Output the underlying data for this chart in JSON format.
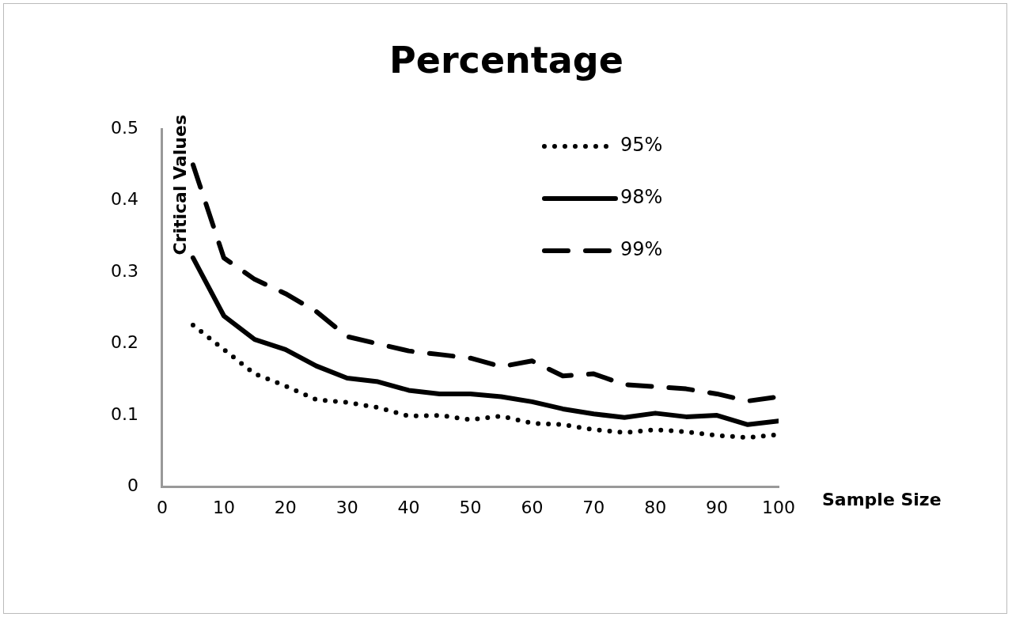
{
  "chart_data": {
    "type": "line",
    "title": "Percentage",
    "xlabel": "Sample Size",
    "ylabel": "Critical Values",
    "x": [
      5,
      10,
      15,
      20,
      25,
      30,
      35,
      40,
      45,
      50,
      55,
      60,
      65,
      70,
      75,
      80,
      85,
      90,
      95,
      100
    ],
    "series": [
      {
        "name": "95%",
        "color": "#000000",
        "line_style": "dotted",
        "values": [
          0.226,
          0.192,
          0.158,
          0.141,
          0.122,
          0.118,
          0.111,
          0.099,
          0.1,
          0.094,
          0.099,
          0.089,
          0.087,
          0.08,
          0.076,
          0.08,
          0.077,
          0.072,
          0.069,
          0.073
        ]
      },
      {
        "name": "98%",
        "color": "#000000",
        "line_style": "solid",
        "values": [
          0.32,
          0.239,
          0.206,
          0.192,
          0.169,
          0.152,
          0.147,
          0.135,
          0.13,
          0.13,
          0.126,
          0.119,
          0.109,
          0.102,
          0.097,
          0.103,
          0.098,
          0.1,
          0.087,
          0.092
        ]
      },
      {
        "name": "99%",
        "color": "#000000",
        "line_style": "dashed",
        "values": [
          0.45,
          0.32,
          0.29,
          0.27,
          0.245,
          0.21,
          0.2,
          0.19,
          0.185,
          0.18,
          0.168,
          0.176,
          0.155,
          0.158,
          0.143,
          0.14,
          0.137,
          0.13,
          0.12,
          0.126
        ]
      }
    ],
    "xlim": [
      0,
      100
    ],
    "xticks": [
      0,
      10,
      20,
      30,
      40,
      50,
      60,
      70,
      80,
      90,
      100
    ],
    "ylim": [
      0,
      0.5
    ],
    "yticks": [
      0,
      0.1,
      0.2,
      0.3,
      0.4,
      0.5
    ],
    "grid": false,
    "legend": "top right",
    "marker": "none"
  }
}
